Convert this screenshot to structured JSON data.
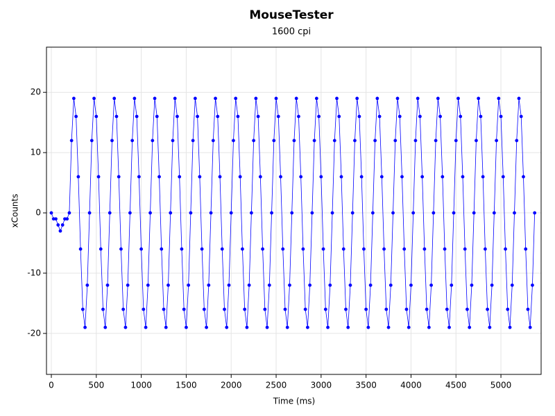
{
  "chart_data": {
    "type": "line",
    "title": "MouseTester",
    "subtitle": "1600 cpi",
    "x_label": "Time (ms)",
    "y_label": "xCounts",
    "xlim": [
      -54,
      5447
    ],
    "ylim": [
      -26.8,
      27.5
    ],
    "xticks": [
      0,
      500,
      1000,
      1500,
      2000,
      2500,
      3000,
      3500,
      4000,
      4500,
      5000
    ],
    "yticks": [
      -20,
      -10,
      0,
      10,
      20
    ],
    "grid": true,
    "markers": true,
    "series": [
      {
        "name": "xCounts",
        "color": "#0000ff",
        "x": [
          0,
          25,
          50,
          75,
          100,
          125,
          150,
          175,
          200,
          225,
          250,
          275,
          300,
          325,
          350,
          375,
          400,
          425,
          450,
          475,
          500,
          525,
          550,
          575,
          600,
          625,
          650,
          675,
          700,
          725,
          750,
          775,
          800,
          825,
          850,
          875,
          900,
          925,
          950,
          975,
          1000,
          1025,
          1050,
          1075,
          1100,
          1125,
          1150,
          1175,
          1200,
          1225,
          1250,
          1275,
          1300,
          1325,
          1350,
          1375,
          1400,
          1425,
          1450,
          1475,
          1500,
          1525,
          1550,
          1575,
          1600,
          1625,
          1650,
          1675,
          1700,
          1725,
          1750,
          1775,
          1800,
          1825,
          1850,
          1875,
          1900,
          1925,
          1950,
          1975,
          2000,
          2025,
          2050,
          2075,
          2100,
          2125,
          2150,
          2175,
          2200,
          2225,
          2250,
          2275,
          2300,
          2325,
          2350,
          2375,
          2400,
          2425,
          2450,
          2475,
          2500,
          2525,
          2550,
          2575,
          2600,
          2625,
          2650,
          2675,
          2700,
          2725,
          2750,
          2775,
          2800,
          2825,
          2850,
          2875,
          2900,
          2925,
          2950,
          2975,
          3000,
          3025,
          3050,
          3075,
          3100,
          3125,
          3150,
          3175,
          3200,
          3225,
          3250,
          3275,
          3300,
          3325,
          3350,
          3375,
          3400,
          3425,
          3450,
          3475,
          3500,
          3525,
          3550,
          3575,
          3600,
          3625,
          3650,
          3675,
          3700,
          3725,
          3750,
          3775,
          3800,
          3825,
          3850,
          3875,
          3900,
          3925,
          3950,
          3975,
          4000,
          4025,
          4050,
          4075,
          4100,
          4125,
          4150,
          4175,
          4200,
          4225,
          4250,
          4275,
          4300,
          4325,
          4350,
          4375,
          4400,
          4425,
          4450,
          4475,
          4500,
          4525,
          4550,
          4575,
          4600,
          4625,
          4650,
          4675,
          4700,
          4725,
          4750,
          4775,
          4800,
          4825,
          4850,
          4875,
          4900,
          4925,
          4950,
          4975,
          5000,
          5025,
          5050,
          5075,
          5100,
          5125,
          5150,
          5175,
          5200,
          5225,
          5250,
          5275,
          5300,
          5325,
          5350,
          5375
        ],
        "values": [
          0,
          -1,
          -1,
          -2,
          -3,
          -2,
          -1,
          -1,
          0,
          12,
          19,
          16,
          6,
          -6,
          -16,
          -19,
          -12,
          0,
          12,
          19,
          16,
          6,
          -6,
          -16,
          -19,
          -12,
          0,
          12,
          19,
          16,
          6,
          -6,
          -16,
          -19,
          -12,
          0,
          12,
          19,
          16,
          6,
          -6,
          -16,
          -19,
          -12,
          0,
          12,
          19,
          16,
          6,
          -6,
          -16,
          -19,
          -12,
          0,
          12,
          19,
          16,
          6,
          -6,
          -16,
          -19,
          -12,
          0,
          12,
          19,
          16,
          6,
          -6,
          -16,
          -19,
          -12,
          0,
          12,
          19,
          16,
          6,
          -6,
          -16,
          -19,
          -12,
          0,
          12,
          19,
          16,
          6,
          -6,
          -16,
          -19,
          -12,
          0,
          12,
          19,
          16,
          6,
          -6,
          -16,
          -19,
          -12,
          0,
          12,
          19,
          16,
          6,
          -6,
          -16,
          -19,
          -12,
          0,
          12,
          19,
          16,
          6,
          -6,
          -16,
          -19,
          -12,
          0,
          12,
          19,
          16,
          6,
          -6,
          -16,
          -19,
          -12,
          0,
          12,
          19,
          16,
          6,
          -6,
          -16,
          -19,
          -12,
          0,
          12,
          19,
          16,
          6,
          -6,
          -16,
          -19,
          -12,
          0,
          12,
          19,
          16,
          6,
          -6,
          -16,
          -19,
          -12,
          0,
          12,
          19,
          16,
          6,
          -6,
          -16,
          -19,
          -12,
          0,
          12,
          19,
          16,
          6,
          -6,
          -16,
          -19,
          -12,
          0,
          12,
          19,
          16,
          6,
          -6,
          -16,
          -19,
          -12,
          0,
          12,
          19,
          16,
          6,
          -6,
          -16,
          -19,
          -12,
          0,
          12,
          19,
          16,
          6,
          -6,
          -16,
          -19,
          -12,
          0,
          12,
          19,
          16,
          6,
          -6,
          -16,
          -19,
          -12,
          0,
          12,
          19,
          16,
          6,
          -6,
          -16,
          -19,
          -12,
          0
        ]
      }
    ]
  }
}
